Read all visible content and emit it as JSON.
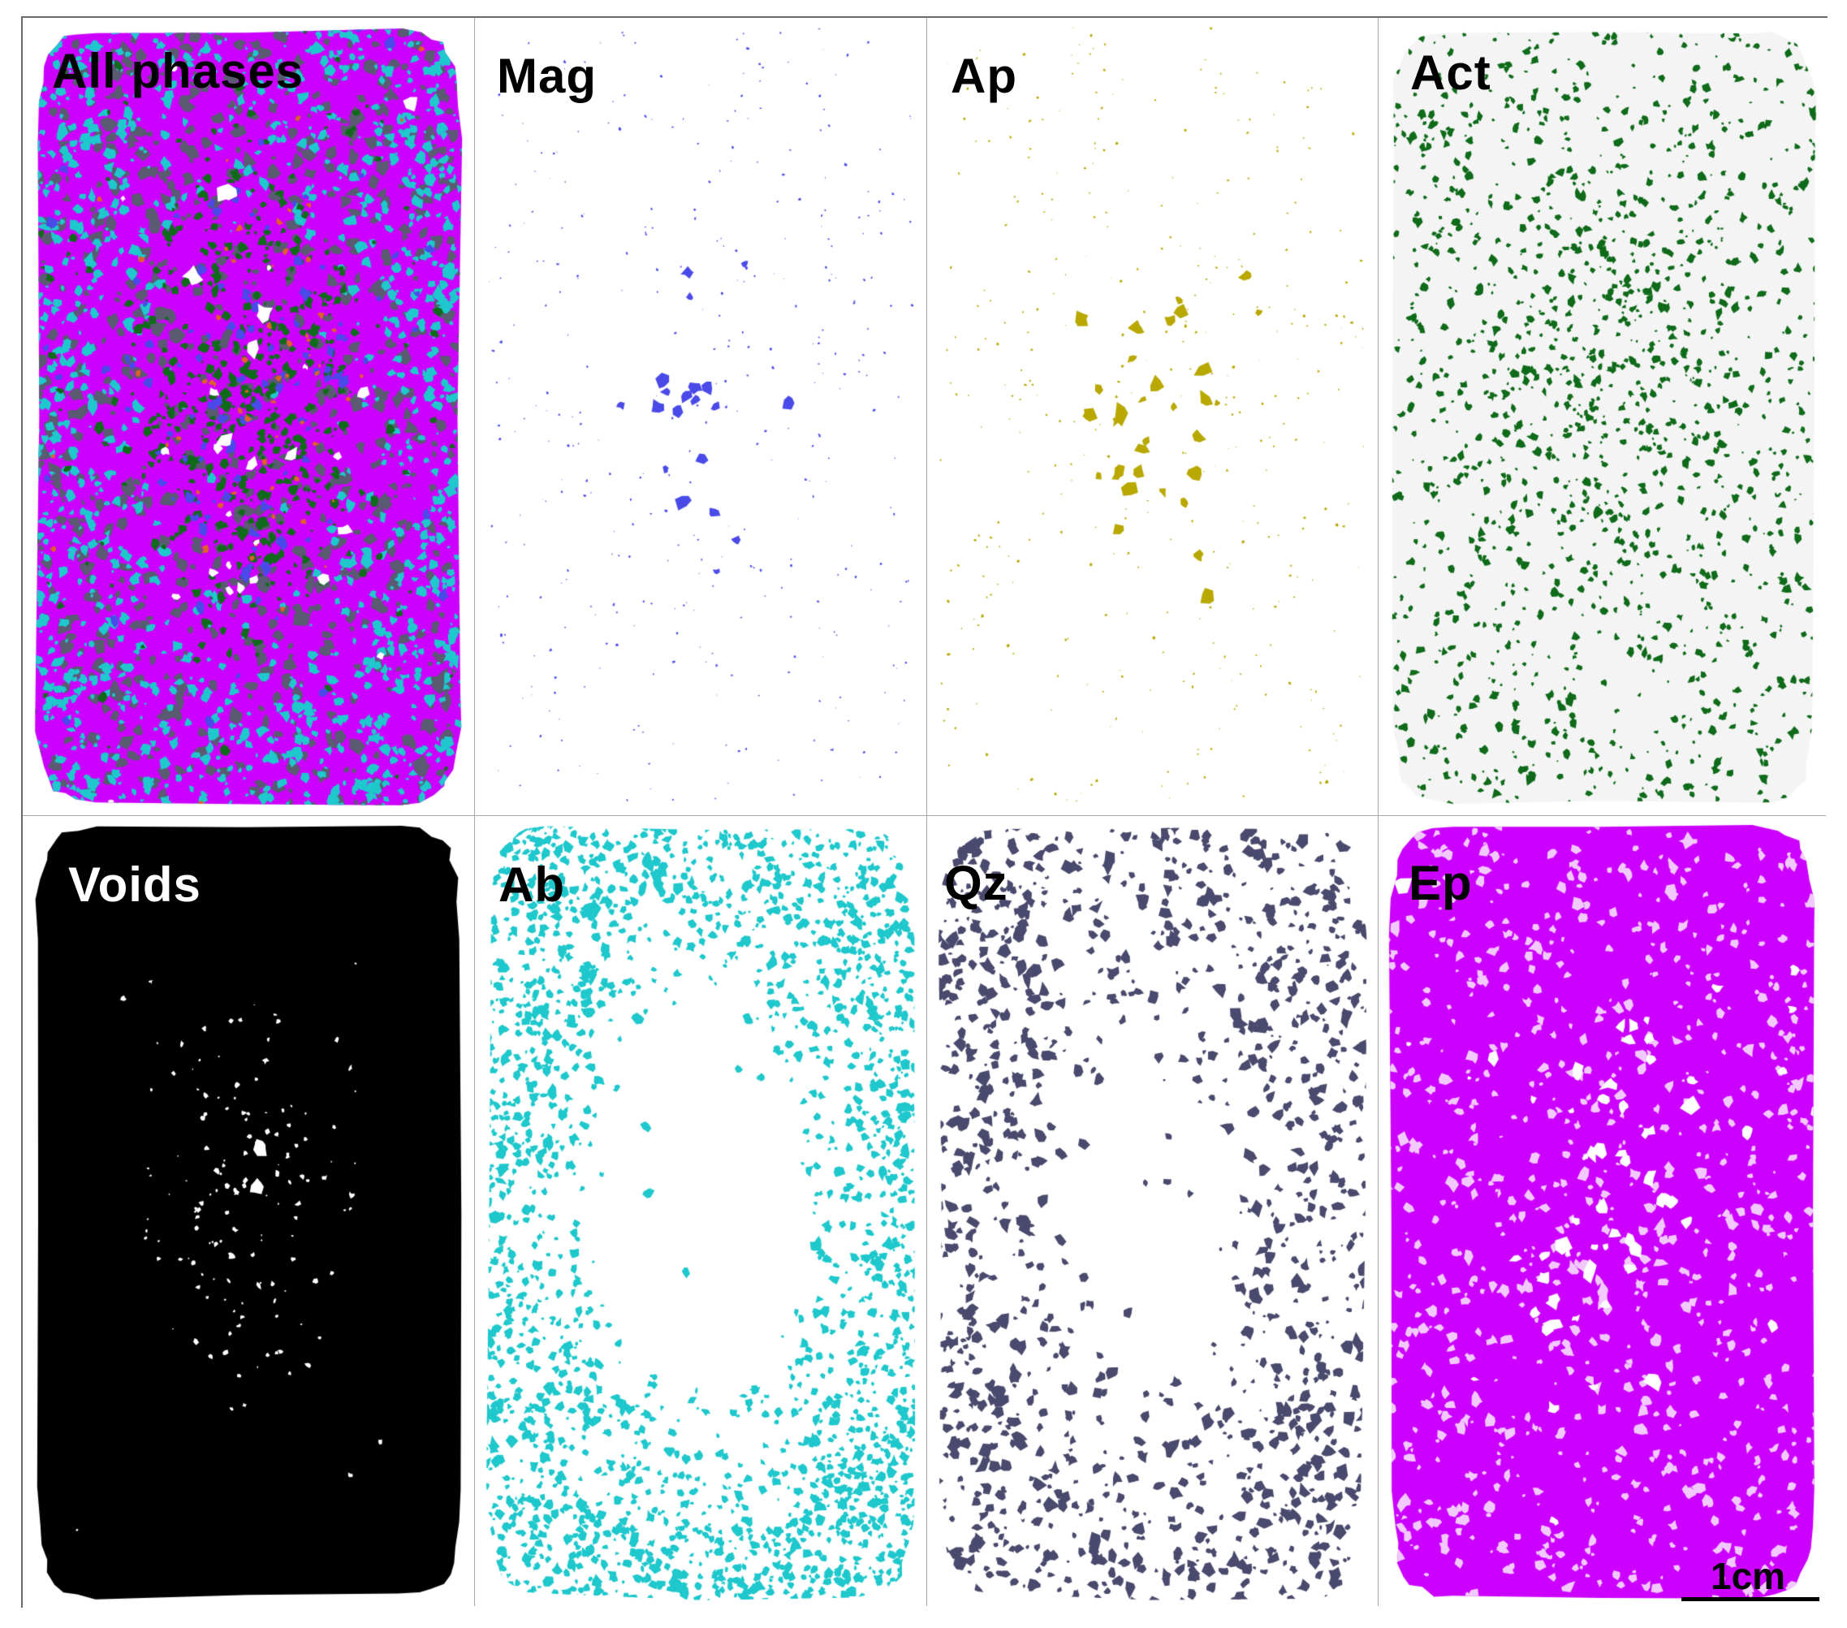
{
  "panels": [
    {
      "id": "all-phases",
      "label": "All phases",
      "label_color": "#000000",
      "color": "#cc00ff",
      "background": "#ffffff",
      "type": "composite"
    },
    {
      "id": "mag",
      "label": "Mag",
      "label_color": "#000000",
      "color": "#4a4ae8",
      "background": "#ffffff",
      "type": "sparse-center"
    },
    {
      "id": "ap",
      "label": "Ap",
      "label_color": "#000000",
      "color": "#b8a800",
      "background": "#ffffff",
      "type": "sparse-center"
    },
    {
      "id": "act",
      "label": "Act",
      "label_color": "#000000",
      "color": "#0f6b1a",
      "background": "#ffffff",
      "type": "dense-center"
    },
    {
      "id": "voids",
      "label": "Voids",
      "label_color": "#ffffff",
      "color": "#000000",
      "background": "#ffffff",
      "type": "inverse"
    },
    {
      "id": "ab",
      "label": "Ab",
      "label_color": "#000000",
      "color": "#1ec8cc",
      "background": "#ffffff",
      "type": "ring"
    },
    {
      "id": "qz",
      "label": "Qz",
      "label_color": "#000000",
      "color": "#4a4a6e",
      "background": "#ffffff",
      "type": "ring"
    },
    {
      "id": "ep",
      "label": "Ep",
      "label_color": "#000000",
      "color": "#cc00ff",
      "background": "#ffffff",
      "type": "dense"
    }
  ],
  "scale_bar": {
    "label": "1cm"
  },
  "composite_colors": [
    "#cc00ff",
    "#1ec8cc",
    "#5a5a72",
    "#0f6b1a",
    "#4a4ae8",
    "#e0602a",
    "#b8a800"
  ]
}
